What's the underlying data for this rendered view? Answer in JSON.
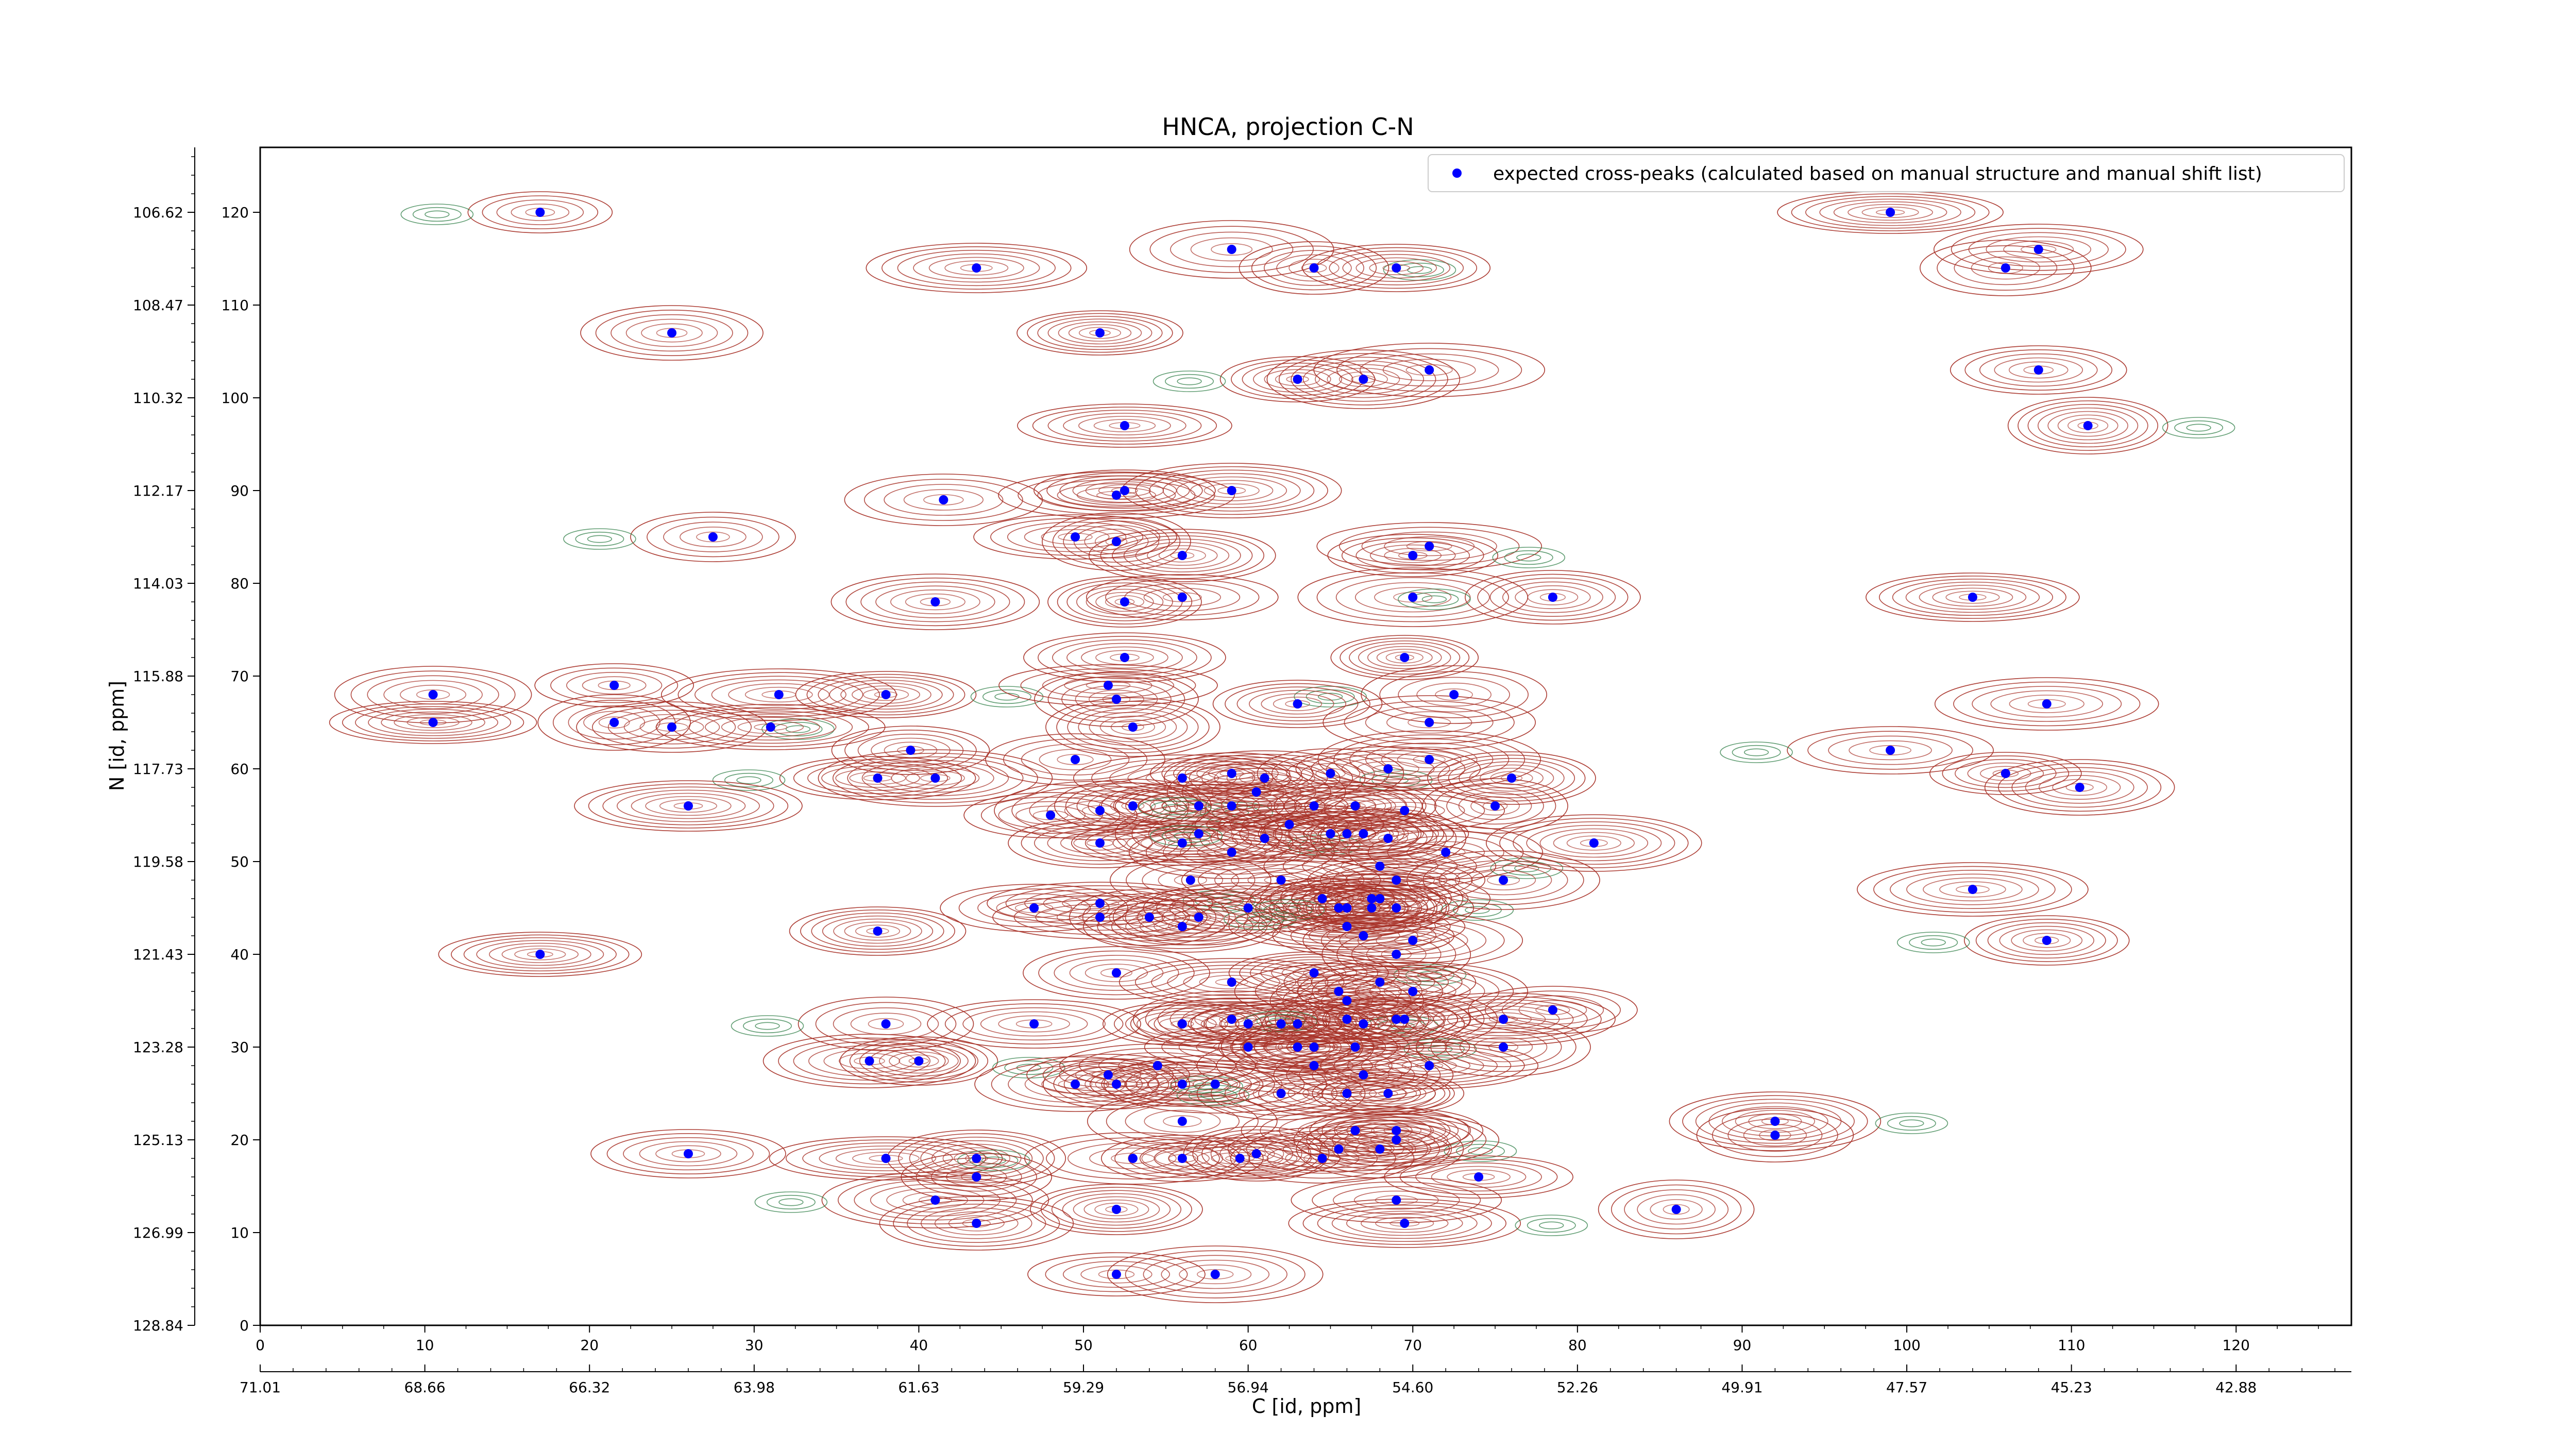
{
  "chart_data": {
    "type": "scatter",
    "title": "HNCA, projection C-N",
    "xlabel": "C [id, ppm]",
    "ylabel": "N [id, ppm]",
    "x_index_range": [
      0,
      127
    ],
    "y_index_range": [
      0,
      127
    ],
    "x_index_ticks": [
      "0",
      "10",
      "20",
      "30",
      "40",
      "50",
      "60",
      "70",
      "80",
      "90",
      "100",
      "110",
      "120"
    ],
    "y_index_ticks": [
      "0",
      "10",
      "20",
      "30",
      "40",
      "50",
      "60",
      "70",
      "80",
      "90",
      "100",
      "110",
      "120"
    ],
    "x_ppm_ticks": [
      "71.01",
      "68.66",
      "66.32",
      "63.98",
      "61.63",
      "59.29",
      "56.94",
      "54.60",
      "52.26",
      "49.91",
      "47.57",
      "45.23",
      "42.88"
    ],
    "y_ppm_ticks": [
      "128.84",
      "126.99",
      "125.13",
      "123.28",
      "121.43",
      "119.58",
      "117.73",
      "115.88",
      "114.03",
      "112.17",
      "110.32",
      "108.47",
      "106.62"
    ],
    "legend": {
      "label": "expected cross-peaks (calculated based on manual structure and manual shift list)",
      "position": "top-right"
    },
    "colors": {
      "positive_contour": "#a83228",
      "negative_contour": "#2e7d46",
      "peak_marker": "#0000ff"
    },
    "series": [
      {
        "name": "expected cross-peaks (calculated based on manual structure and manual shift list)",
        "points": [
          [
            17,
            120
          ],
          [
            25,
            107
          ],
          [
            43.5,
            114
          ],
          [
            51,
            107
          ],
          [
            59,
            116
          ],
          [
            64,
            114
          ],
          [
            69,
            114
          ],
          [
            99,
            120
          ],
          [
            106,
            114
          ],
          [
            108,
            116
          ],
          [
            63,
            102
          ],
          [
            67,
            102
          ],
          [
            71,
            103
          ],
          [
            108,
            103
          ],
          [
            52.5,
            97
          ],
          [
            111,
            97
          ],
          [
            41.5,
            89
          ],
          [
            52,
            89.5
          ],
          [
            52.5,
            90
          ],
          [
            59,
            90
          ],
          [
            27.5,
            85
          ],
          [
            49.5,
            85
          ],
          [
            52,
            84.5
          ],
          [
            56,
            83
          ],
          [
            71,
            84
          ],
          [
            70,
            83
          ],
          [
            41,
            78
          ],
          [
            52.5,
            78
          ],
          [
            56,
            78.5
          ],
          [
            70,
            78.5
          ],
          [
            78.5,
            78.5
          ],
          [
            104,
            78.5
          ],
          [
            21.5,
            69
          ],
          [
            10.5,
            68
          ],
          [
            31.5,
            68
          ],
          [
            38,
            68
          ],
          [
            51.5,
            69
          ],
          [
            52,
            67.5
          ],
          [
            52.5,
            72
          ],
          [
            69.5,
            72
          ],
          [
            72.5,
            68
          ],
          [
            108.5,
            67
          ],
          [
            63,
            67
          ],
          [
            10.5,
            65
          ],
          [
            21.5,
            65
          ],
          [
            25,
            64.5
          ],
          [
            31,
            64.5
          ],
          [
            53,
            64.5
          ],
          [
            71,
            65
          ],
          [
            39.5,
            62
          ],
          [
            37.5,
            59
          ],
          [
            41,
            59
          ],
          [
            49.5,
            61
          ],
          [
            56,
            59
          ],
          [
            59,
            59.5
          ],
          [
            61,
            59
          ],
          [
            65,
            59.5
          ],
          [
            68.5,
            60
          ],
          [
            71,
            61
          ],
          [
            76,
            59
          ],
          [
            99,
            62
          ],
          [
            106,
            59.5
          ],
          [
            110.5,
            58
          ],
          [
            26,
            56
          ],
          [
            48,
            55
          ],
          [
            51,
            55.5
          ],
          [
            53,
            56
          ],
          [
            57,
            56
          ],
          [
            59,
            56
          ],
          [
            60.5,
            57.5
          ],
          [
            64,
            56
          ],
          [
            66.5,
            56
          ],
          [
            69.5,
            55.5
          ],
          [
            75,
            56
          ],
          [
            51,
            52
          ],
          [
            56,
            52
          ],
          [
            57,
            53
          ],
          [
            59,
            51
          ],
          [
            61,
            52.5
          ],
          [
            62.5,
            54
          ],
          [
            65,
            53
          ],
          [
            66,
            53
          ],
          [
            67,
            53
          ],
          [
            68.5,
            52.5
          ],
          [
            72,
            51
          ],
          [
            68,
            49.5
          ],
          [
            69,
            48
          ],
          [
            81,
            52
          ],
          [
            56.5,
            48
          ],
          [
            62,
            48
          ],
          [
            64.5,
            46
          ],
          [
            67.5,
            46
          ],
          [
            68,
            46
          ],
          [
            65.5,
            45
          ],
          [
            66,
            45
          ],
          [
            67.5,
            45
          ],
          [
            47,
            45
          ],
          [
            51,
            45.5
          ],
          [
            57,
            44
          ],
          [
            60,
            45
          ],
          [
            69,
            45
          ],
          [
            75.5,
            48
          ],
          [
            104,
            47
          ],
          [
            37.5,
            42.5
          ],
          [
            51,
            44
          ],
          [
            54,
            44
          ],
          [
            56,
            43
          ],
          [
            66,
            43
          ],
          [
            67,
            42
          ],
          [
            70,
            41.5
          ],
          [
            108.5,
            41.5
          ],
          [
            17,
            40
          ],
          [
            69,
            40
          ],
          [
            52,
            38
          ],
          [
            59,
            37
          ],
          [
            64,
            38
          ],
          [
            65.5,
            36
          ],
          [
            66,
            35
          ],
          [
            68,
            37
          ],
          [
            70,
            36
          ],
          [
            38,
            32.5
          ],
          [
            47,
            32.5
          ],
          [
            56,
            32.5
          ],
          [
            59,
            33
          ],
          [
            60,
            32.5
          ],
          [
            62,
            32.5
          ],
          [
            63,
            32.5
          ],
          [
            66,
            33
          ],
          [
            67,
            32.5
          ],
          [
            69,
            33
          ],
          [
            69.5,
            33
          ],
          [
            75.5,
            33
          ],
          [
            78.5,
            34
          ],
          [
            60,
            30
          ],
          [
            63,
            30
          ],
          [
            64,
            30
          ],
          [
            66.5,
            30
          ],
          [
            75.5,
            30
          ],
          [
            37,
            28.5
          ],
          [
            40,
            28.5
          ],
          [
            54.5,
            28
          ],
          [
            64,
            28
          ],
          [
            67,
            27
          ],
          [
            71,
            28
          ],
          [
            51.5,
            27
          ],
          [
            49.5,
            26
          ],
          [
            52,
            26
          ],
          [
            56,
            26
          ],
          [
            58,
            26
          ],
          [
            62,
            25
          ],
          [
            66,
            25
          ],
          [
            68.5,
            25
          ],
          [
            56,
            22
          ],
          [
            66.5,
            21
          ],
          [
            69,
            21
          ],
          [
            92,
            22
          ],
          [
            92,
            20.5
          ],
          [
            26,
            18.5
          ],
          [
            38,
            18
          ],
          [
            43.5,
            18
          ],
          [
            53,
            18
          ],
          [
            56,
            18
          ],
          [
            59.5,
            18
          ],
          [
            60.5,
            18.5
          ],
          [
            64.5,
            18
          ],
          [
            65.5,
            19
          ],
          [
            68,
            19
          ],
          [
            69,
            20
          ],
          [
            43.5,
            16
          ],
          [
            74,
            16
          ],
          [
            41,
            13.5
          ],
          [
            52,
            12.5
          ],
          [
            69,
            13.5
          ],
          [
            86,
            12.5
          ],
          [
            43.5,
            11
          ],
          [
            69.5,
            11
          ],
          [
            52,
            5.5
          ],
          [
            58,
            5.5
          ]
        ]
      }
    ],
    "grid": false
  }
}
